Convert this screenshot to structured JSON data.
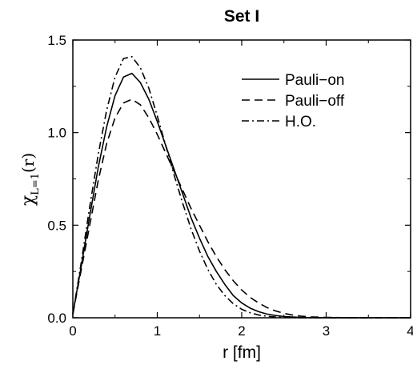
{
  "chart_data": {
    "type": "line",
    "title": "Set I",
    "xlabel": "r [fm]",
    "ylabel_symbol": "χ",
    "ylabel_sub": "L=1",
    "ylabel_arg": "(r)",
    "xlim": [
      0,
      4
    ],
    "ylim": [
      0,
      1.5
    ],
    "x_ticks": [
      "0",
      "1",
      "2",
      "3",
      "4"
    ],
    "y_ticks": [
      "0.0",
      "0.5",
      "1.0",
      "1.5"
    ],
    "grid": false,
    "legend_position": "top-right",
    "series": [
      {
        "name": "Pauli−on",
        "style": "solid",
        "x": [
          0,
          0.1,
          0.2,
          0.3,
          0.4,
          0.5,
          0.6,
          0.7,
          0.8,
          0.9,
          1.0,
          1.1,
          1.2,
          1.3,
          1.4,
          1.5,
          1.6,
          1.7,
          1.8,
          1.9,
          2.0,
          2.1,
          2.2,
          2.3,
          2.4,
          2.5,
          2.6,
          2.7,
          2.8,
          3.0,
          3.2,
          3.4,
          3.6,
          3.8,
          4.0
        ],
        "y": [
          0.02,
          0.28,
          0.55,
          0.81,
          1.03,
          1.2,
          1.3,
          1.32,
          1.27,
          1.18,
          1.06,
          0.93,
          0.8,
          0.67,
          0.54,
          0.43,
          0.33,
          0.25,
          0.18,
          0.12,
          0.08,
          0.052,
          0.033,
          0.02,
          0.012,
          0.007,
          0.004,
          0.002,
          0.001,
          0.0,
          0.0,
          0.0,
          0.0,
          0.0,
          0.0
        ]
      },
      {
        "name": "Pauli−off",
        "style": "dashed",
        "x": [
          0,
          0.1,
          0.2,
          0.3,
          0.4,
          0.5,
          0.6,
          0.7,
          0.8,
          0.9,
          1.0,
          1.1,
          1.2,
          1.3,
          1.4,
          1.5,
          1.6,
          1.7,
          1.8,
          1.9,
          2.0,
          2.1,
          2.2,
          2.3,
          2.4,
          2.5,
          2.6,
          2.7,
          2.8,
          3.0,
          3.2,
          3.4,
          3.6,
          3.8,
          4.0
        ],
        "y": [
          0.02,
          0.26,
          0.5,
          0.74,
          0.94,
          1.08,
          1.16,
          1.18,
          1.15,
          1.08,
          0.99,
          0.89,
          0.79,
          0.69,
          0.59,
          0.5,
          0.41,
          0.33,
          0.26,
          0.2,
          0.15,
          0.11,
          0.08,
          0.055,
          0.037,
          0.024,
          0.015,
          0.009,
          0.005,
          0.002,
          0.001,
          0.0,
          0.0,
          0.0,
          0.0
        ]
      },
      {
        "name": "H.O.",
        "style": "dashdot",
        "x": [
          0,
          0.1,
          0.2,
          0.3,
          0.4,
          0.5,
          0.6,
          0.7,
          0.8,
          0.9,
          1.0,
          1.1,
          1.2,
          1.3,
          1.4,
          1.5,
          1.6,
          1.7,
          1.8,
          1.9,
          2.0,
          2.1,
          2.2,
          2.3,
          2.4,
          2.5,
          2.6,
          2.7,
          2.8,
          3.0,
          3.2,
          3.4,
          3.6,
          3.8,
          4.0
        ],
        "y": [
          0.02,
          0.3,
          0.6,
          0.88,
          1.12,
          1.3,
          1.4,
          1.41,
          1.35,
          1.24,
          1.09,
          0.93,
          0.77,
          0.62,
          0.48,
          0.36,
          0.26,
          0.18,
          0.12,
          0.076,
          0.046,
          0.027,
          0.015,
          0.008,
          0.004,
          0.002,
          0.001,
          0.0,
          0.0,
          0.0,
          0.0,
          0.0,
          0.0,
          0.0,
          0.0
        ]
      }
    ]
  }
}
